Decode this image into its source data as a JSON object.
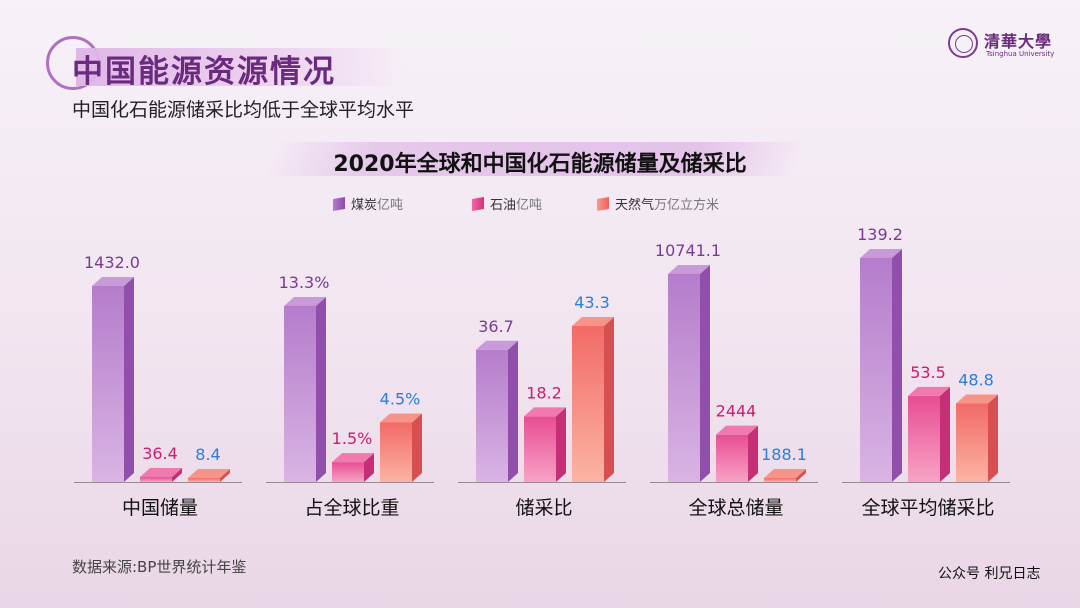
{
  "header": {
    "title": "中国能源资源情况",
    "subtitle": "中国化石能源储采比均低于全球平均水平"
  },
  "logo": {
    "name_cn": "清華大學",
    "name_en": "Tsinghua University"
  },
  "footer": {
    "source": "数据来源:BP世界统计年鉴",
    "credit": "公众号 利兄日志"
  },
  "colors": {
    "coal": "#a15cbd",
    "oil": "#e6418f",
    "gas": "#f06c6c",
    "coal_label": "#7b3a92",
    "oil_label": "#c81e6d",
    "gas_label": "#2a7fd6"
  },
  "chart_data": {
    "type": "bar",
    "title": "2020年全球和中国化石能源储量及储采比",
    "categories": [
      "中国储量",
      "占全球比重",
      "储采比",
      "全球总储量",
      "全球平均储采比"
    ],
    "series": [
      {
        "name": "煤炭",
        "unit": "亿吨",
        "values": [
          1432.0,
          13.3,
          36.7,
          10741.1,
          139.2
        ],
        "labels": [
          "1432.0",
          "13.3%",
          "36.7",
          "10741.1",
          "139.2"
        ]
      },
      {
        "name": "石油",
        "unit": "亿吨",
        "values": [
          36.4,
          1.5,
          18.2,
          2444,
          53.5
        ],
        "labels": [
          "36.4",
          "1.5%",
          "18.2",
          "2444",
          "53.5"
        ]
      },
      {
        "name": "天然气",
        "unit": "万亿立方米",
        "values": [
          8.4,
          4.5,
          43.3,
          188.1,
          48.8
        ],
        "labels": [
          "8.4",
          "4.5%",
          "43.3",
          "188.1",
          "48.8"
        ]
      }
    ],
    "grid": false,
    "legend_position": "top-center"
  }
}
